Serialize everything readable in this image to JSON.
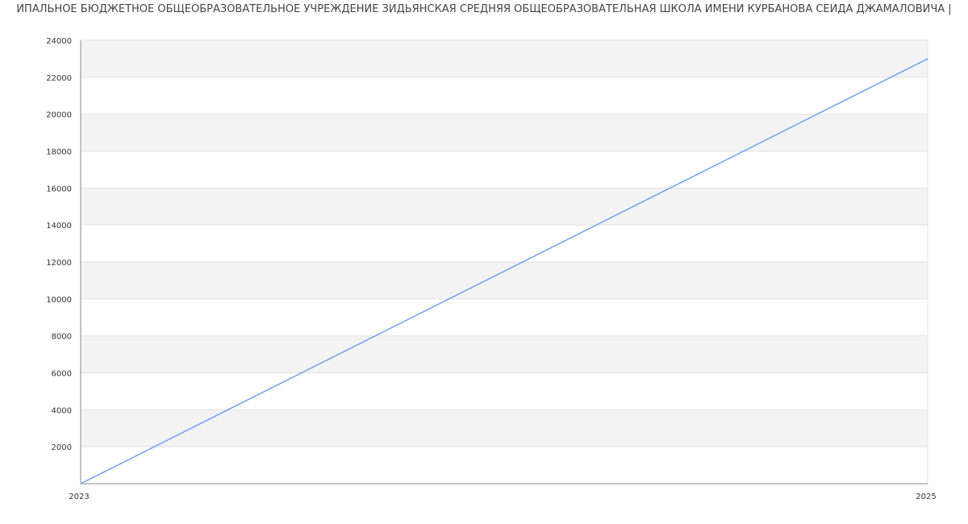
{
  "chart_data": {
    "type": "line",
    "title": "ИПАЛЬНОЕ БЮДЖЕТНОЕ ОБЩЕОБРАЗОВАТЕЛЬНОЕ УЧРЕЖДЕНИЕ ЗИДЬЯНСКАЯ СРЕДНЯЯ ОБЩЕОБРАЗОВАТЕЛЬНАЯ ШКОЛА ИМЕНИ КУРБАНОВА СЕИДА ДЖАМАЛОВИЧА |",
    "x": [
      2023,
      2025
    ],
    "x_tick_labels": [
      "2023",
      "2025"
    ],
    "series": [
      {
        "values": [
          0,
          23000
        ],
        "color": "#6f9ef8"
      }
    ],
    "ylim": [
      0,
      24000
    ],
    "y_ticks": [
      2000,
      4000,
      6000,
      8000,
      10000,
      12000,
      14000,
      16000,
      18000,
      20000,
      22000,
      24000
    ],
    "grid": true,
    "band_color": "#f3f3f3"
  }
}
